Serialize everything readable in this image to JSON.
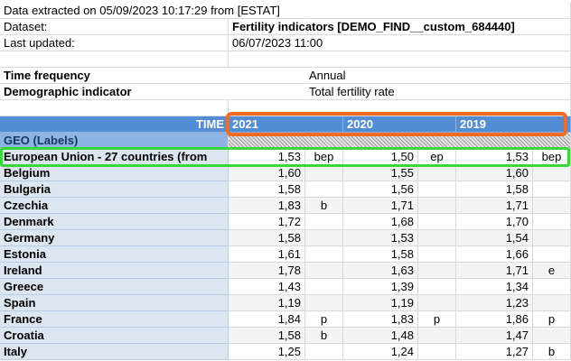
{
  "info": {
    "extracted": "Data extracted on 05/09/2023 10:17:29 from [ESTAT]",
    "dataset_label": "Dataset:",
    "dataset_value": "Fertility indicators [DEMO_FIND__custom_684440]",
    "updated_label": "Last updated:",
    "updated_value": "06/07/2023 11:00"
  },
  "filters": [
    {
      "label": "Time frequency",
      "value": "Annual"
    },
    {
      "label": "Demographic indicator",
      "value": "Total fertility rate"
    }
  ],
  "table": {
    "time_label": "TIME",
    "years": [
      "2021",
      "2020",
      "2019"
    ],
    "geo_label": "GEO (Labels)",
    "rows": [
      {
        "geo": "European Union - 27 countries (from",
        "cells": [
          [
            "1,53",
            "bep"
          ],
          [
            "1,50",
            "ep"
          ],
          [
            "1,53",
            "bep"
          ]
        ]
      },
      {
        "geo": "Belgium",
        "cells": [
          [
            "1,60",
            null
          ],
          [
            "1,55",
            null
          ],
          [
            "1,60",
            null
          ]
        ]
      },
      {
        "geo": "Bulgaria",
        "cells": [
          [
            "1,58",
            null
          ],
          [
            "1,56",
            null
          ],
          [
            "1,58",
            null
          ]
        ]
      },
      {
        "geo": "Czechia",
        "cells": [
          [
            "1,83",
            "b"
          ],
          [
            "1,71",
            null
          ],
          [
            "1,71",
            null
          ]
        ]
      },
      {
        "geo": "Denmark",
        "cells": [
          [
            "1,72",
            null
          ],
          [
            "1,68",
            null
          ],
          [
            "1,70",
            null
          ]
        ]
      },
      {
        "geo": "Germany",
        "cells": [
          [
            "1,58",
            null
          ],
          [
            "1,53",
            null
          ],
          [
            "1,54",
            null
          ]
        ]
      },
      {
        "geo": "Estonia",
        "cells": [
          [
            "1,61",
            null
          ],
          [
            "1,58",
            null
          ],
          [
            "1,66",
            null
          ]
        ]
      },
      {
        "geo": "Ireland",
        "cells": [
          [
            "1,78",
            null
          ],
          [
            "1,63",
            null
          ],
          [
            "1,71",
            "e"
          ]
        ]
      },
      {
        "geo": "Greece",
        "cells": [
          [
            "1,43",
            null
          ],
          [
            "1,39",
            null
          ],
          [
            "1,34",
            null
          ]
        ]
      },
      {
        "geo": "Spain",
        "cells": [
          [
            "1,19",
            null
          ],
          [
            "1,19",
            null
          ],
          [
            "1,23",
            null
          ]
        ]
      },
      {
        "geo": "France",
        "cells": [
          [
            "1,84",
            "p"
          ],
          [
            "1,83",
            "p"
          ],
          [
            "1,86",
            "p"
          ]
        ]
      },
      {
        "geo": "Croatia",
        "cells": [
          [
            "1,58",
            "b"
          ],
          [
            "1,48",
            null
          ],
          [
            "1,47",
            null
          ]
        ]
      },
      {
        "geo": "Italy",
        "cells": [
          [
            "1,25",
            null
          ],
          [
            "1,24",
            null
          ],
          [
            "1,27",
            "b"
          ]
        ]
      }
    ]
  }
}
